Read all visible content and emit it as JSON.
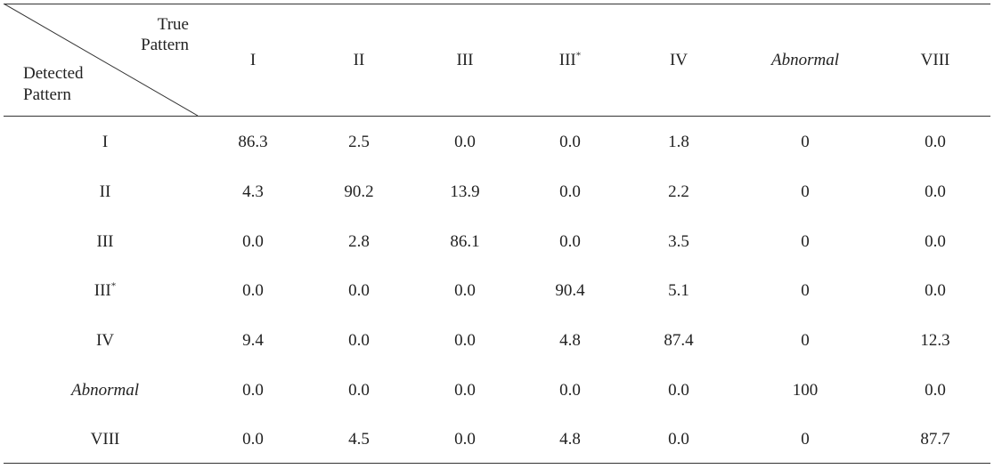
{
  "table": {
    "corner": {
      "true_label_line1": "True",
      "true_label_line2": "Pattern",
      "detected_label_line1": "Detected",
      "detected_label_line2": "Pattern"
    },
    "columns": [
      {
        "base": "I",
        "sup": "",
        "italic": false
      },
      {
        "base": "II",
        "sup": "",
        "italic": false
      },
      {
        "base": "III",
        "sup": "",
        "italic": false
      },
      {
        "base": "III",
        "sup": "*",
        "italic": false
      },
      {
        "base": "IV",
        "sup": "",
        "italic": false
      },
      {
        "base": "Abnormal",
        "sup": "",
        "italic": true
      },
      {
        "base": "VIII",
        "sup": "",
        "italic": false
      }
    ],
    "rows": [
      {
        "label": {
          "base": "I",
          "sup": "",
          "italic": false
        },
        "values": [
          "86.3",
          "2.5",
          "0.0",
          "0.0",
          "1.8",
          "0",
          "0.0"
        ]
      },
      {
        "label": {
          "base": "II",
          "sup": "",
          "italic": false
        },
        "values": [
          "4.3",
          "90.2",
          "13.9",
          "0.0",
          "2.2",
          "0",
          "0.0"
        ]
      },
      {
        "label": {
          "base": "III",
          "sup": "",
          "italic": false
        },
        "values": [
          "0.0",
          "2.8",
          "86.1",
          "0.0",
          "3.5",
          "0",
          "0.0"
        ]
      },
      {
        "label": {
          "base": "III",
          "sup": "*",
          "italic": false
        },
        "values": [
          "0.0",
          "0.0",
          "0.0",
          "90.4",
          "5.1",
          "0",
          "0.0"
        ]
      },
      {
        "label": {
          "base": "IV",
          "sup": "",
          "italic": false
        },
        "values": [
          "9.4",
          "0.0",
          "0.0",
          "4.8",
          "87.4",
          "0",
          "12.3"
        ]
      },
      {
        "label": {
          "base": "Abnormal",
          "sup": "",
          "italic": true
        },
        "values": [
          "0.0",
          "0.0",
          "0.0",
          "0.0",
          "0.0",
          "100",
          "0.0"
        ]
      },
      {
        "label": {
          "base": "VIII",
          "sup": "",
          "italic": false
        },
        "values": [
          "0.0",
          "4.5",
          "0.0",
          "4.8",
          "0.0",
          "0",
          "87.7"
        ]
      }
    ]
  }
}
